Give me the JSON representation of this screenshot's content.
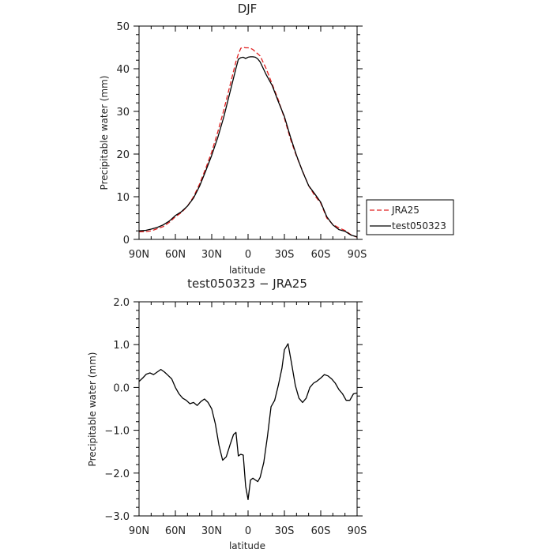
{
  "chart_data": [
    {
      "type": "line",
      "title": "DJF",
      "xlabel": "latitude",
      "ylabel": "Precipitable water (mm)",
      "x_tick_values": [
        90,
        60,
        30,
        0,
        -30,
        -60,
        -90
      ],
      "x_tick_labels": [
        "90N",
        "60N",
        "30N",
        "0",
        "30S",
        "60S",
        "90S"
      ],
      "xlim": [
        90,
        -90
      ],
      "y_ticks": [
        0,
        10,
        20,
        30,
        40,
        50
      ],
      "y_tick_labels": [
        "0",
        "10",
        "20",
        "30",
        "40",
        "50"
      ],
      "ylim": [
        0,
        50
      ],
      "grid": false,
      "legend_position": "right-bottom",
      "x": [
        90,
        85,
        80,
        75,
        70,
        65,
        60,
        55,
        50,
        45,
        40,
        35,
        30,
        25,
        20,
        15,
        10,
        8,
        6,
        4,
        2,
        0,
        -2,
        -4,
        -6,
        -8,
        -10,
        -15,
        -20,
        -25,
        -30,
        -35,
        -40,
        -45,
        -50,
        -55,
        -60,
        -65,
        -70,
        -75,
        -80,
        -85,
        -90
      ],
      "series": [
        {
          "name": "JRA25",
          "color": "#e02020",
          "dash": "dashed",
          "values": [
            1.8,
            1.8,
            2.0,
            2.5,
            3.0,
            4.0,
            5.3,
            6.3,
            7.8,
            10.0,
            13.0,
            16.6,
            20.5,
            25.2,
            30.3,
            36.0,
            41.7,
            43.4,
            44.8,
            45.0,
            44.9,
            44.9,
            44.8,
            44.5,
            44.0,
            43.5,
            43.0,
            40.0,
            36.3,
            32.7,
            28.4,
            23.5,
            19.5,
            16.0,
            12.6,
            10.3,
            8.5,
            5.0,
            3.5,
            2.7,
            2.1,
            1.1,
            0.5
          ]
        },
        {
          "name": "test050323",
          "color": "#000000",
          "dash": "solid",
          "values": [
            2.0,
            2.1,
            2.4,
            2.8,
            3.4,
            4.3,
            5.6,
            6.5,
            7.8,
            9.7,
            12.5,
            16.0,
            19.7,
            23.9,
            28.7,
            34.4,
            40.1,
            42.2,
            42.6,
            42.7,
            42.4,
            42.7,
            42.8,
            42.8,
            42.7,
            42.3,
            41.6,
            38.6,
            36.0,
            32.3,
            28.8,
            24.0,
            19.7,
            15.9,
            12.6,
            10.7,
            8.7,
            5.3,
            3.4,
            2.3,
            1.9,
            1.0,
            0.6
          ]
        }
      ]
    },
    {
      "type": "line",
      "title": "test050323 − JRA25",
      "xlabel": "latitude",
      "ylabel": "Precipitable water (mm)",
      "x_tick_values": [
        90,
        60,
        30,
        0,
        -30,
        -60,
        -90
      ],
      "x_tick_labels": [
        "90N",
        "60N",
        "30N",
        "0",
        "30S",
        "60S",
        "90S"
      ],
      "xlim": [
        90,
        -90
      ],
      "y_ticks": [
        -3,
        -2,
        -1,
        0,
        1,
        2
      ],
      "y_tick_labels": [
        "−3.0",
        "−2.0",
        "−1.0",
        "0.0",
        "1.0",
        "2.0"
      ],
      "ylim": [
        -3,
        2
      ],
      "grid": false,
      "x": [
        90,
        87,
        84,
        81,
        78,
        75,
        72,
        69,
        66,
        63,
        60,
        57,
        54,
        51,
        48,
        45,
        42,
        39,
        36,
        33,
        30,
        27,
        24,
        21,
        18,
        15,
        12,
        10,
        8,
        6,
        4,
        2,
        0,
        -2,
        -4,
        -6,
        -8,
        -10,
        -13,
        -16,
        -19,
        -22,
        -25,
        -28,
        -30,
        -33,
        -36,
        -39,
        -42,
        -45,
        -48,
        -51,
        -54,
        -57,
        -60,
        -63,
        -66,
        -69,
        -72,
        -75,
        -78,
        -81,
        -84,
        -87,
        -90
      ],
      "series": [
        {
          "color": "#000000",
          "dash": "solid",
          "values": [
            0.14,
            0.22,
            0.31,
            0.34,
            0.3,
            0.36,
            0.42,
            0.36,
            0.28,
            0.2,
            0.0,
            -0.15,
            -0.25,
            -0.3,
            -0.38,
            -0.35,
            -0.42,
            -0.33,
            -0.27,
            -0.35,
            -0.5,
            -0.85,
            -1.35,
            -1.7,
            -1.62,
            -1.35,
            -1.1,
            -1.05,
            -1.6,
            -1.56,
            -1.58,
            -2.3,
            -2.62,
            -2.16,
            -2.12,
            -2.16,
            -2.2,
            -2.1,
            -1.75,
            -1.15,
            -0.45,
            -0.3,
            0.05,
            0.45,
            0.88,
            1.02,
            0.55,
            0.05,
            -0.25,
            -0.35,
            -0.25,
            0.0,
            0.1,
            0.15,
            0.22,
            0.3,
            0.27,
            0.2,
            0.1,
            -0.05,
            -0.15,
            -0.3,
            -0.3,
            -0.15,
            -0.13
          ]
        }
      ]
    }
  ]
}
